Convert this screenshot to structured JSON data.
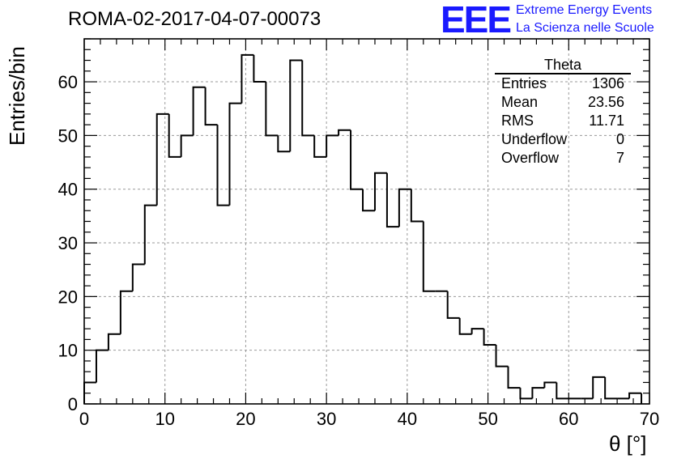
{
  "header": {
    "run_title": "ROMA-02-2017-04-07-00073",
    "logo_mark": "EEE",
    "logo_line1": "Extreme Energy Events",
    "logo_line2": "La Scienza nelle Scuole",
    "brand_color": "#1a1aff"
  },
  "stats_box": {
    "title": "Theta",
    "rows": [
      {
        "label": "Entries",
        "value": "1306"
      },
      {
        "label": "Mean",
        "value": "23.56"
      },
      {
        "label": "RMS",
        "value": "11.71"
      },
      {
        "label": "Underflow",
        "value": "0"
      },
      {
        "label": "Overflow",
        "value": "7"
      }
    ]
  },
  "chart_data": {
    "type": "bar",
    "histogram": true,
    "title": "ROMA-02-2017-04-07-00073",
    "xlabel": "θ [°]",
    "ylabel": "Entries/bin",
    "xlim": [
      0,
      70
    ],
    "ylim": [
      0,
      68
    ],
    "grid": true,
    "bin_width": 1.5,
    "x_ticks": [
      0,
      10,
      20,
      30,
      40,
      50,
      60,
      70
    ],
    "y_ticks": [
      0,
      10,
      20,
      30,
      40,
      50,
      60
    ],
    "bin_edges": [
      0,
      1.5,
      3,
      4.5,
      6,
      7.5,
      9,
      10.5,
      12,
      13.5,
      15,
      16.5,
      18,
      19.5,
      21,
      22.5,
      24,
      25.5,
      27,
      28.5,
      30,
      31.5,
      33,
      34.5,
      36,
      37.5,
      39,
      40.5,
      42,
      43.5,
      45,
      46.5,
      48,
      49.5,
      51,
      52.5,
      54,
      55.5,
      57,
      58.5,
      60,
      61.5,
      63,
      64.5,
      66,
      67.5,
      69
    ],
    "values": [
      4,
      10,
      13,
      21,
      26,
      37,
      54,
      46,
      50,
      59,
      52,
      37,
      56,
      65,
      60,
      50,
      47,
      64,
      50,
      46,
      50,
      51,
      40,
      36,
      43,
      33,
      40,
      34,
      21,
      21,
      16,
      13,
      14,
      11,
      7,
      3,
      1,
      3,
      4,
      1,
      1,
      1,
      5,
      1,
      1,
      2,
      0
    ]
  }
}
